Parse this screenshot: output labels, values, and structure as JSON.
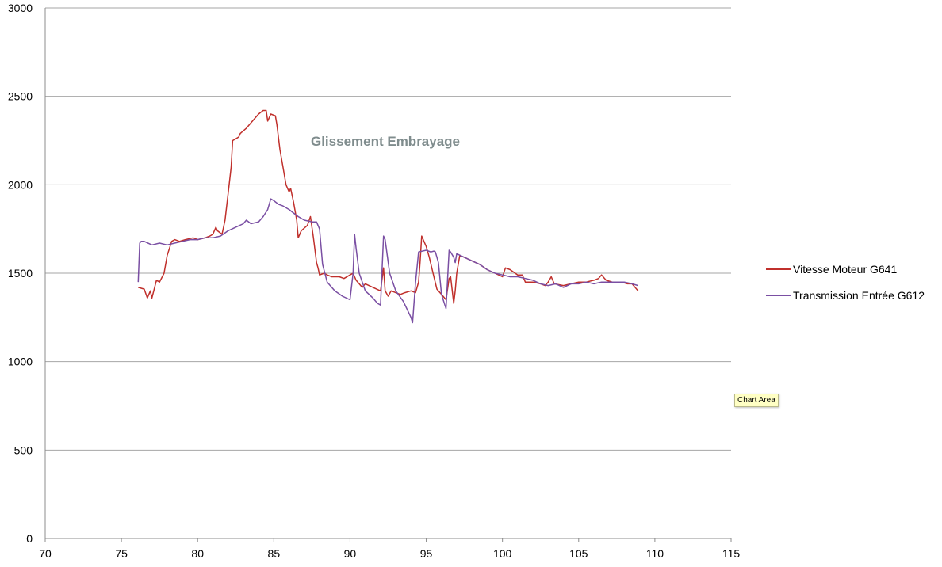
{
  "chart_data": {
    "type": "line",
    "title": "Glissement Embrayage",
    "xlabel": "",
    "ylabel": "",
    "xlim": [
      70,
      115
    ],
    "ylim": [
      0,
      3000
    ],
    "x_ticks": [
      70,
      75,
      80,
      85,
      90,
      95,
      100,
      105,
      110,
      115
    ],
    "y_ticks": [
      0,
      500,
      1000,
      1500,
      2000,
      2500,
      3000
    ],
    "grid": "horizontal",
    "legend_position": "right",
    "series": [
      {
        "name": "Vitesse Moteur G641",
        "color": "#c0302c",
        "points": [
          [
            76.1,
            1420
          ],
          [
            76.5,
            1410
          ],
          [
            76.7,
            1360
          ],
          [
            76.9,
            1400
          ],
          [
            77.0,
            1360
          ],
          [
            77.3,
            1460
          ],
          [
            77.5,
            1450
          ],
          [
            77.8,
            1500
          ],
          [
            78.0,
            1600
          ],
          [
            78.3,
            1680
          ],
          [
            78.5,
            1690
          ],
          [
            78.8,
            1680
          ],
          [
            79.2,
            1690
          ],
          [
            79.7,
            1700
          ],
          [
            80.0,
            1690
          ],
          [
            80.5,
            1700
          ],
          [
            80.8,
            1710
          ],
          [
            81.0,
            1720
          ],
          [
            81.2,
            1760
          ],
          [
            81.3,
            1740
          ],
          [
            81.6,
            1720
          ],
          [
            81.8,
            1800
          ],
          [
            82.0,
            1950
          ],
          [
            82.2,
            2100
          ],
          [
            82.3,
            2250
          ],
          [
            82.5,
            2260
          ],
          [
            82.7,
            2270
          ],
          [
            82.8,
            2290
          ],
          [
            83.2,
            2320
          ],
          [
            83.6,
            2360
          ],
          [
            84.0,
            2400
          ],
          [
            84.3,
            2420
          ],
          [
            84.5,
            2420
          ],
          [
            84.6,
            2360
          ],
          [
            84.8,
            2400
          ],
          [
            85.1,
            2390
          ],
          [
            85.2,
            2340
          ],
          [
            85.4,
            2200
          ],
          [
            85.6,
            2100
          ],
          [
            85.8,
            2000
          ],
          [
            86.0,
            1960
          ],
          [
            86.1,
            1980
          ],
          [
            86.3,
            1900
          ],
          [
            86.5,
            1800
          ],
          [
            86.6,
            1700
          ],
          [
            86.8,
            1740
          ],
          [
            87.2,
            1770
          ],
          [
            87.4,
            1820
          ],
          [
            87.6,
            1700
          ],
          [
            87.8,
            1560
          ],
          [
            87.9,
            1530
          ],
          [
            88.0,
            1490
          ],
          [
            88.3,
            1500
          ],
          [
            88.5,
            1490
          ],
          [
            88.8,
            1480
          ],
          [
            89.0,
            1480
          ],
          [
            89.3,
            1480
          ],
          [
            89.6,
            1470
          ],
          [
            90.0,
            1490
          ],
          [
            90.2,
            1500
          ],
          [
            90.4,
            1460
          ],
          [
            90.6,
            1440
          ],
          [
            90.8,
            1420
          ],
          [
            91.0,
            1440
          ],
          [
            91.5,
            1420
          ],
          [
            92.0,
            1400
          ],
          [
            92.2,
            1530
          ],
          [
            92.3,
            1400
          ],
          [
            92.5,
            1370
          ],
          [
            92.7,
            1400
          ],
          [
            93.0,
            1390
          ],
          [
            93.3,
            1380
          ],
          [
            93.6,
            1390
          ],
          [
            94.0,
            1400
          ],
          [
            94.3,
            1390
          ],
          [
            94.5,
            1450
          ],
          [
            94.6,
            1570
          ],
          [
            94.7,
            1710
          ],
          [
            94.8,
            1690
          ],
          [
            95.0,
            1650
          ],
          [
            95.2,
            1590
          ],
          [
            95.5,
            1480
          ],
          [
            95.7,
            1410
          ],
          [
            96.0,
            1380
          ],
          [
            96.3,
            1350
          ],
          [
            96.5,
            1470
          ],
          [
            96.6,
            1480
          ],
          [
            96.8,
            1330
          ],
          [
            96.9,
            1400
          ],
          [
            97.0,
            1500
          ],
          [
            97.2,
            1600
          ],
          [
            97.5,
            1590
          ],
          [
            98.0,
            1570
          ],
          [
            98.5,
            1550
          ],
          [
            99.0,
            1520
          ],
          [
            99.5,
            1500
          ],
          [
            100.0,
            1480
          ],
          [
            100.2,
            1530
          ],
          [
            100.5,
            1520
          ],
          [
            101.0,
            1490
          ],
          [
            101.3,
            1490
          ],
          [
            101.5,
            1450
          ],
          [
            102.0,
            1450
          ],
          [
            102.5,
            1440
          ],
          [
            102.8,
            1430
          ],
          [
            103.0,
            1450
          ],
          [
            103.2,
            1480
          ],
          [
            103.4,
            1440
          ],
          [
            104.0,
            1430
          ],
          [
            104.5,
            1440
          ],
          [
            105.0,
            1450
          ],
          [
            105.5,
            1450
          ],
          [
            106.0,
            1460
          ],
          [
            106.3,
            1470
          ],
          [
            106.5,
            1490
          ],
          [
            106.8,
            1460
          ],
          [
            107.2,
            1450
          ],
          [
            107.8,
            1450
          ],
          [
            108.2,
            1440
          ],
          [
            108.5,
            1440
          ],
          [
            108.9,
            1400
          ]
        ]
      },
      {
        "name": "Transmission Entrée G612",
        "color": "#7a4fa3",
        "points": [
          [
            76.1,
            1450
          ],
          [
            76.2,
            1670
          ],
          [
            76.3,
            1680
          ],
          [
            76.5,
            1680
          ],
          [
            77.0,
            1660
          ],
          [
            77.5,
            1670
          ],
          [
            78.0,
            1660
          ],
          [
            78.5,
            1670
          ],
          [
            79.0,
            1680
          ],
          [
            79.5,
            1690
          ],
          [
            80.0,
            1690
          ],
          [
            80.5,
            1700
          ],
          [
            81.0,
            1700
          ],
          [
            81.5,
            1710
          ],
          [
            82.0,
            1740
          ],
          [
            82.5,
            1760
          ],
          [
            83.0,
            1780
          ],
          [
            83.2,
            1800
          ],
          [
            83.5,
            1780
          ],
          [
            84.0,
            1790
          ],
          [
            84.3,
            1820
          ],
          [
            84.6,
            1860
          ],
          [
            84.8,
            1920
          ],
          [
            85.0,
            1910
          ],
          [
            85.3,
            1890
          ],
          [
            85.6,
            1880
          ],
          [
            86.0,
            1860
          ],
          [
            86.3,
            1840
          ],
          [
            86.6,
            1820
          ],
          [
            87.0,
            1800
          ],
          [
            87.5,
            1790
          ],
          [
            87.8,
            1790
          ],
          [
            88.0,
            1750
          ],
          [
            88.2,
            1550
          ],
          [
            88.5,
            1450
          ],
          [
            89.0,
            1400
          ],
          [
            89.5,
            1370
          ],
          [
            90.0,
            1350
          ],
          [
            90.2,
            1500
          ],
          [
            90.3,
            1720
          ],
          [
            90.4,
            1640
          ],
          [
            90.6,
            1500
          ],
          [
            91.0,
            1400
          ],
          [
            91.5,
            1360
          ],
          [
            91.8,
            1330
          ],
          [
            92.0,
            1320
          ],
          [
            92.2,
            1710
          ],
          [
            92.3,
            1690
          ],
          [
            92.6,
            1500
          ],
          [
            93.0,
            1400
          ],
          [
            93.5,
            1340
          ],
          [
            94.0,
            1250
          ],
          [
            94.1,
            1220
          ],
          [
            94.3,
            1450
          ],
          [
            94.5,
            1620
          ],
          [
            95.0,
            1630
          ],
          [
            95.3,
            1620
          ],
          [
            95.5,
            1625
          ],
          [
            95.6,
            1620
          ],
          [
            95.8,
            1560
          ],
          [
            96.0,
            1380
          ],
          [
            96.3,
            1300
          ],
          [
            96.5,
            1630
          ],
          [
            96.6,
            1620
          ],
          [
            96.8,
            1590
          ],
          [
            96.9,
            1560
          ],
          [
            97.0,
            1610
          ],
          [
            97.5,
            1590
          ],
          [
            98.0,
            1570
          ],
          [
            98.5,
            1550
          ],
          [
            99.0,
            1520
          ],
          [
            99.5,
            1500
          ],
          [
            100.0,
            1490
          ],
          [
            100.5,
            1480
          ],
          [
            101.0,
            1480
          ],
          [
            101.5,
            1470
          ],
          [
            102.0,
            1460
          ],
          [
            102.5,
            1440
          ],
          [
            103.0,
            1430
          ],
          [
            103.5,
            1440
          ],
          [
            104.0,
            1420
          ],
          [
            104.5,
            1440
          ],
          [
            105.0,
            1440
          ],
          [
            105.5,
            1450
          ],
          [
            106.0,
            1440
          ],
          [
            106.5,
            1450
          ],
          [
            107.0,
            1450
          ],
          [
            107.5,
            1450
          ],
          [
            108.0,
            1450
          ],
          [
            108.5,
            1440
          ],
          [
            108.9,
            1430
          ]
        ]
      }
    ]
  },
  "tooltip": "Chart Area"
}
